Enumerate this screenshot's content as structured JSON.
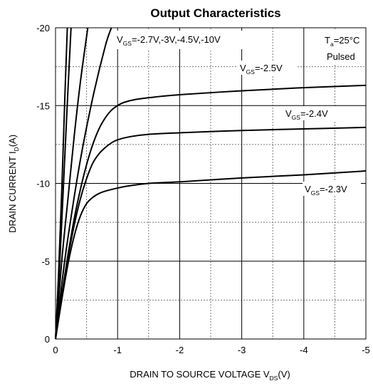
{
  "chart_data": {
    "type": "line",
    "title": "Output Characteristics",
    "xlabel": {
      "main": "DRAIN TO SOURCE VOLTAGE V",
      "sub": "DS",
      "tail": "(V)"
    },
    "ylabel": {
      "main": "DRAIN CURRENT I",
      "sub": "D",
      "tail": "(A)"
    },
    "xlim": [
      0,
      -5
    ],
    "ylim": [
      0,
      -20
    ],
    "x_ticks": [
      0,
      -1,
      -2,
      -3,
      -4,
      -5
    ],
    "x_tick_labels": [
      "0",
      "-1",
      "-2",
      "-3",
      "-4",
      "-5"
    ],
    "y_ticks": [
      0,
      -5,
      -10,
      -15,
      -20
    ],
    "y_tick_labels": [
      "0",
      "-5",
      "-10",
      "-15",
      "-20"
    ],
    "grid": {
      "major": "solid",
      "minor": "dotted"
    },
    "series": [
      {
        "curve": "VGS=-10V",
        "x": [
          0,
          -0.05,
          -0.1,
          -0.15,
          -0.19
        ],
        "y": [
          0,
          -4.3,
          -9.5,
          -15.5,
          -20
        ]
      },
      {
        "curve": "VGS=-4.5V",
        "x": [
          0,
          -0.05,
          -0.1,
          -0.2,
          -0.25
        ],
        "y": [
          0,
          -3.5,
          -7.5,
          -16.0,
          -20
        ]
      },
      {
        "curve": "VGS=-3V",
        "x": [
          0,
          -0.1,
          -0.2,
          -0.3,
          -0.4,
          -0.52
        ],
        "y": [
          0,
          -5.0,
          -9.0,
          -13.0,
          -16.5,
          -20
        ]
      },
      {
        "curve": "VGS=-2.7V",
        "x": [
          0,
          -0.1,
          -0.2,
          -0.4,
          -0.6,
          -0.8,
          -0.9
        ],
        "y": [
          0,
          -3.5,
          -6.5,
          -11.5,
          -15.5,
          -18.8,
          -20
        ]
      },
      {
        "curve": "VGS=-2.5V",
        "x": [
          0,
          -0.1,
          -0.2,
          -0.3,
          -0.4,
          -0.5,
          -0.6,
          -0.7,
          -0.8,
          -0.9,
          -1.0,
          -1.1,
          -1.3,
          -1.6,
          -2.0,
          -3.0,
          -4.0,
          -5.0
        ],
        "y": [
          0,
          -2.8,
          -5.4,
          -7.7,
          -9.6,
          -11.2,
          -12.5,
          -13.5,
          -14.2,
          -14.7,
          -15.0,
          -15.2,
          -15.4,
          -15.55,
          -15.7,
          -15.95,
          -16.15,
          -16.3
        ]
      },
      {
        "curve": "VGS=-2.4V",
        "x": [
          0,
          -0.1,
          -0.2,
          -0.3,
          -0.4,
          -0.5,
          -0.6,
          -0.7,
          -0.8,
          -0.9,
          -1.0,
          -1.2,
          -1.5,
          -2.0,
          -3.0,
          -4.0,
          -5.0
        ],
        "y": [
          0,
          -2.7,
          -5.2,
          -7.3,
          -9.0,
          -10.3,
          -11.3,
          -11.9,
          -12.3,
          -12.6,
          -12.8,
          -13.0,
          -13.15,
          -13.25,
          -13.4,
          -13.5,
          -13.6
        ]
      },
      {
        "curve": "VGS=-2.3V",
        "x": [
          0,
          -0.1,
          -0.2,
          -0.3,
          -0.4,
          -0.5,
          -0.6,
          -0.7,
          -0.8,
          -1.0,
          -1.2,
          -1.5,
          -2.0,
          -3.0,
          -4.0,
          -5.0
        ],
        "y": [
          0,
          -2.5,
          -4.8,
          -6.6,
          -7.9,
          -8.7,
          -9.1,
          -9.35,
          -9.5,
          -9.7,
          -9.85,
          -10.0,
          -10.1,
          -10.35,
          -10.55,
          -10.8
        ]
      }
    ],
    "annotations": [
      {
        "text": "V",
        "sub": "GS",
        "tail": "=-2.7V,-3V,-4.5V,-10V"
      },
      {
        "text": "V",
        "sub": "GS",
        "tail": "=-2.5V"
      },
      {
        "text": "V",
        "sub": "GS",
        "tail": "=-2.4V"
      },
      {
        "text": "V",
        "sub": "GS",
        "tail": "=-2.3V"
      },
      {
        "text": "T",
        "sub": "a",
        "tail": "=25°C"
      },
      {
        "text": "Pulsed"
      }
    ]
  }
}
